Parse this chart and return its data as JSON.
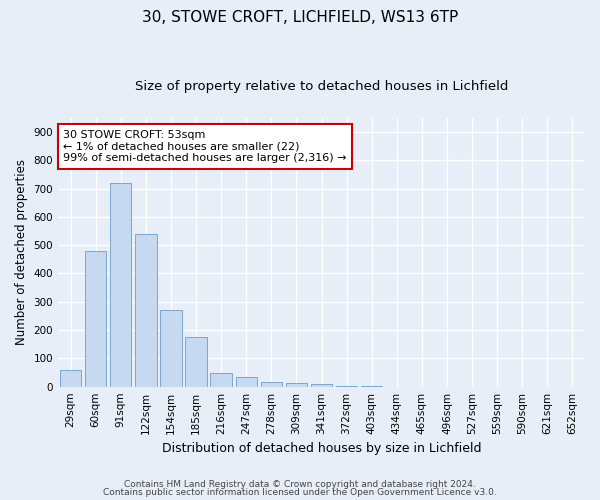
{
  "title1": "30, STOWE CROFT, LICHFIELD, WS13 6TP",
  "title2": "Size of property relative to detached houses in Lichfield",
  "xlabel": "Distribution of detached houses by size in Lichfield",
  "ylabel": "Number of detached properties",
  "bin_labels": [
    "29sqm",
    "60sqm",
    "91sqm",
    "122sqm",
    "154sqm",
    "185sqm",
    "216sqm",
    "247sqm",
    "278sqm",
    "309sqm",
    "341sqm",
    "372sqm",
    "403sqm",
    "434sqm",
    "465sqm",
    "496sqm",
    "527sqm",
    "559sqm",
    "590sqm",
    "621sqm",
    "652sqm"
  ],
  "bar_values": [
    60,
    480,
    720,
    540,
    270,
    175,
    48,
    33,
    15,
    13,
    8,
    3,
    3,
    0,
    0,
    0,
    0,
    0,
    0,
    0,
    0
  ],
  "bar_color": "#c6d9f0",
  "bar_edge_color": "#7ba7d0",
  "annotation_text": "30 STOWE CROFT: 53sqm\n← 1% of detached houses are smaller (22)\n99% of semi-detached houses are larger (2,316) →",
  "annotation_box_color": "#ffffff",
  "annotation_box_edge_color": "#cc0000",
  "ylim": [
    0,
    950
  ],
  "yticks": [
    0,
    100,
    200,
    300,
    400,
    500,
    600,
    700,
    800,
    900
  ],
  "footnote1": "Contains HM Land Registry data © Crown copyright and database right 2024.",
  "footnote2": "Contains public sector information licensed under the Open Government Licence v3.0.",
  "bg_color": "#e8eef8",
  "plot_bg_color": "#e8eef8",
  "grid_color": "#ffffff",
  "title1_fontsize": 11,
  "title2_fontsize": 9.5,
  "xlabel_fontsize": 9,
  "ylabel_fontsize": 8.5,
  "tick_fontsize": 7.5,
  "annotation_fontsize": 8,
  "footnote_fontsize": 6.5
}
